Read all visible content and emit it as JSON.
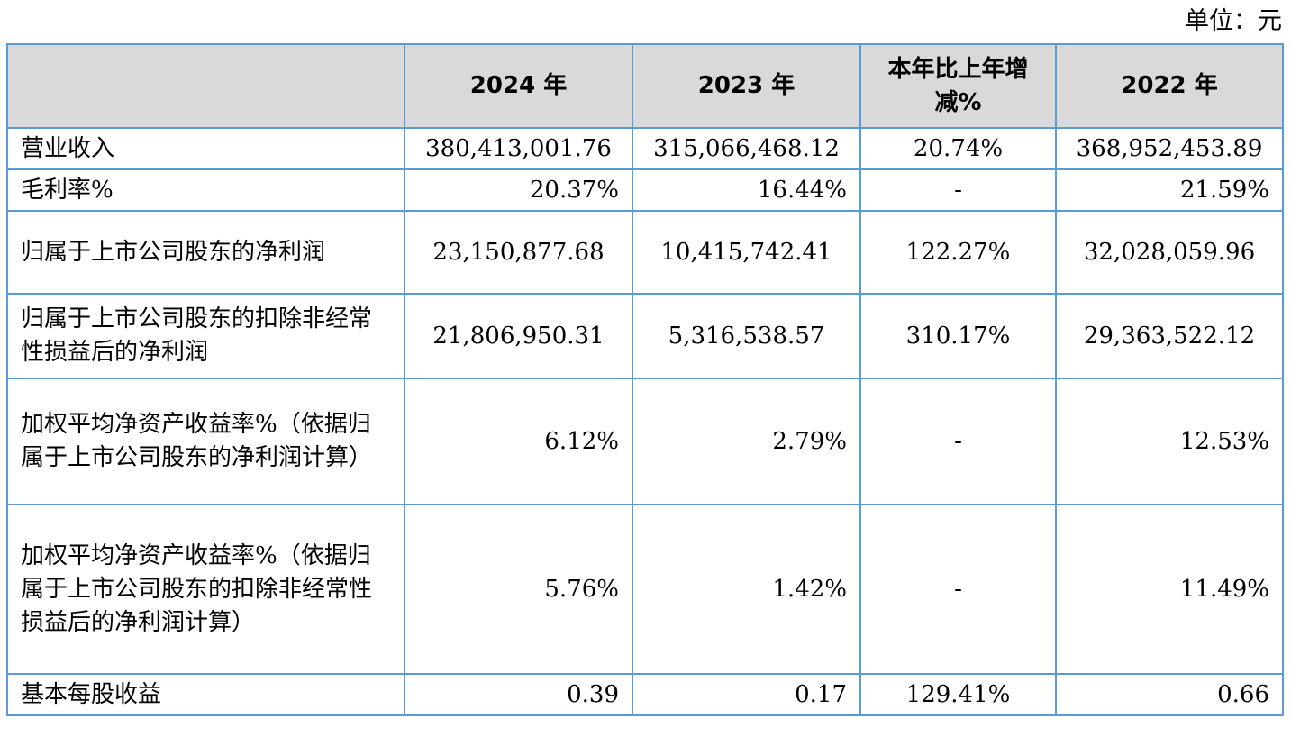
{
  "unit_label": "单位：元",
  "header": {
    "col0": "",
    "col1": "2024 年",
    "col2": "2023 年",
    "col3": "本年比上年增减%",
    "col4": "2022 年"
  },
  "rows": [
    {
      "label": "营业收入",
      "y2024": "380,413,001.76",
      "y2023": "315,066,468.12",
      "change": "20.74%",
      "y2022": "368,952,453.89"
    },
    {
      "label": "毛利率%",
      "y2024": "20.37%",
      "y2023": "16.44%",
      "change": "-",
      "y2022": "21.59%"
    },
    {
      "label": "归属于上市公司股东的净利润",
      "y2024": "23,150,877.68",
      "y2023": "10,415,742.41",
      "change": "122.27%",
      "y2022": "32,028,059.96"
    },
    {
      "label": "归属于上市公司股东的扣除非经常性损益后的净利润",
      "y2024": "21,806,950.31",
      "y2023": "5,316,538.57",
      "change": "310.17%",
      "y2022": "29,363,522.12"
    },
    {
      "label": "加权平均净资产收益率%（依据归属于上市公司股东的净利润计算）",
      "y2024": "6.12%",
      "y2023": "2.79%",
      "change": "-",
      "y2022": "12.53%"
    },
    {
      "label": "加权平均净资产收益率%（依据归属于上市公司股东的扣除非经常性损益后的净利润计算）",
      "y2024": "5.76%",
      "y2023": "1.42%",
      "change": "-",
      "y2022": "11.49%"
    },
    {
      "label": "基本每股收益",
      "y2024": "0.39",
      "y2023": "0.17",
      "change": "129.41%",
      "y2022": "0.66"
    }
  ]
}
